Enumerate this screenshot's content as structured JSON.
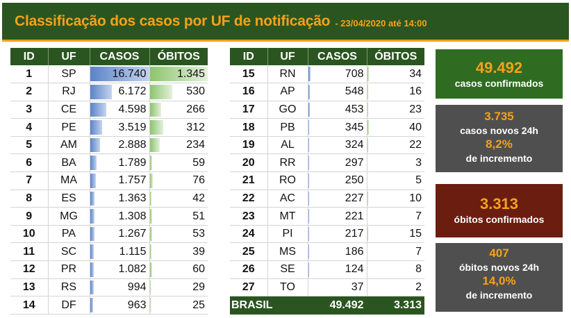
{
  "header": {
    "title": "Classificação dos casos por UF de notificação",
    "subtitle": "- 23/04/2020 até 14:00"
  },
  "columns": {
    "id": "ID",
    "uf": "UF",
    "casos": "CASOS",
    "obitos": "ÓBITOS"
  },
  "max_casos": 16740,
  "max_obitos": 1345,
  "left_rows": [
    {
      "id": "1",
      "uf": "SP",
      "casos": "16.740",
      "obitos": "1.345",
      "casos_n": 16740,
      "obitos_n": 1345
    },
    {
      "id": "2",
      "uf": "RJ",
      "casos": "6.172",
      "obitos": "530",
      "casos_n": 6172,
      "obitos_n": 530
    },
    {
      "id": "3",
      "uf": "CE",
      "casos": "4.598",
      "obitos": "266",
      "casos_n": 4598,
      "obitos_n": 266
    },
    {
      "id": "4",
      "uf": "PE",
      "casos": "3.519",
      "obitos": "312",
      "casos_n": 3519,
      "obitos_n": 312
    },
    {
      "id": "5",
      "uf": "AM",
      "casos": "2.888",
      "obitos": "234",
      "casos_n": 2888,
      "obitos_n": 234
    },
    {
      "id": "6",
      "uf": "BA",
      "casos": "1.789",
      "obitos": "59",
      "casos_n": 1789,
      "obitos_n": 59
    },
    {
      "id": "7",
      "uf": "MA",
      "casos": "1.757",
      "obitos": "76",
      "casos_n": 1757,
      "obitos_n": 76
    },
    {
      "id": "8",
      "uf": "ES",
      "casos": "1.363",
      "obitos": "42",
      "casos_n": 1363,
      "obitos_n": 42
    },
    {
      "id": "9",
      "uf": "MG",
      "casos": "1.308",
      "obitos": "51",
      "casos_n": 1308,
      "obitos_n": 51
    },
    {
      "id": "10",
      "uf": "PA",
      "casos": "1.267",
      "obitos": "53",
      "casos_n": 1267,
      "obitos_n": 53
    },
    {
      "id": "11",
      "uf": "SC",
      "casos": "1.115",
      "obitos": "39",
      "casos_n": 1115,
      "obitos_n": 39
    },
    {
      "id": "12",
      "uf": "PR",
      "casos": "1.082",
      "obitos": "60",
      "casos_n": 1082,
      "obitos_n": 60
    },
    {
      "id": "13",
      "uf": "RS",
      "casos": "994",
      "obitos": "29",
      "casos_n": 994,
      "obitos_n": 29
    },
    {
      "id": "14",
      "uf": "DF",
      "casos": "963",
      "obitos": "25",
      "casos_n": 963,
      "obitos_n": 25
    }
  ],
  "right_rows": [
    {
      "id": "15",
      "uf": "RN",
      "casos": "708",
      "obitos": "34",
      "casos_n": 708,
      "obitos_n": 34
    },
    {
      "id": "16",
      "uf": "AP",
      "casos": "548",
      "obitos": "16",
      "casos_n": 548,
      "obitos_n": 16
    },
    {
      "id": "17",
      "uf": "GO",
      "casos": "453",
      "obitos": "23",
      "casos_n": 453,
      "obitos_n": 23
    },
    {
      "id": "18",
      "uf": "PB",
      "casos": "345",
      "obitos": "40",
      "casos_n": 345,
      "obitos_n": 40
    },
    {
      "id": "19",
      "uf": "AL",
      "casos": "324",
      "obitos": "22",
      "casos_n": 324,
      "obitos_n": 22
    },
    {
      "id": "20",
      "uf": "RR",
      "casos": "297",
      "obitos": "3",
      "casos_n": 297,
      "obitos_n": 3
    },
    {
      "id": "21",
      "uf": "RO",
      "casos": "250",
      "obitos": "5",
      "casos_n": 250,
      "obitos_n": 5
    },
    {
      "id": "22",
      "uf": "AC",
      "casos": "227",
      "obitos": "10",
      "casos_n": 227,
      "obitos_n": 10
    },
    {
      "id": "23",
      "uf": "MT",
      "casos": "221",
      "obitos": "7",
      "casos_n": 221,
      "obitos_n": 7
    },
    {
      "id": "24",
      "uf": "PI",
      "casos": "217",
      "obitos": "15",
      "casos_n": 217,
      "obitos_n": 15
    },
    {
      "id": "25",
      "uf": "MS",
      "casos": "186",
      "obitos": "7",
      "casos_n": 186,
      "obitos_n": 7
    },
    {
      "id": "26",
      "uf": "SE",
      "casos": "124",
      "obitos": "8",
      "casos_n": 124,
      "obitos_n": 8
    },
    {
      "id": "27",
      "uf": "TO",
      "casos": "37",
      "obitos": "2",
      "casos_n": 37,
      "obitos_n": 2
    }
  ],
  "total": {
    "label": "BRASIL",
    "casos": "49.492",
    "obitos": "3.313"
  },
  "summary": {
    "confirmed_cases": {
      "value": "49.492",
      "label": "casos confirmados"
    },
    "new_cases": {
      "value": "3.735",
      "label": "casos novos 24h",
      "pct": "8,2%",
      "pct_label": "de incremento"
    },
    "confirmed_deaths": {
      "value": "3.313",
      "label": "óbitos confirmados"
    },
    "new_deaths": {
      "value": "407",
      "label": "óbitos novos 24h",
      "pct": "14,0%",
      "pct_label": "de incremento"
    }
  },
  "colors": {
    "header_bg": "#2b5520",
    "accent": "#f7a11a",
    "cases_bar": "#5b83c8",
    "deaths_bar": "#8cc56e",
    "cases_box": "#2f6b21",
    "deaths_box": "#6b1d10",
    "info_box": "#4f4f4f"
  }
}
